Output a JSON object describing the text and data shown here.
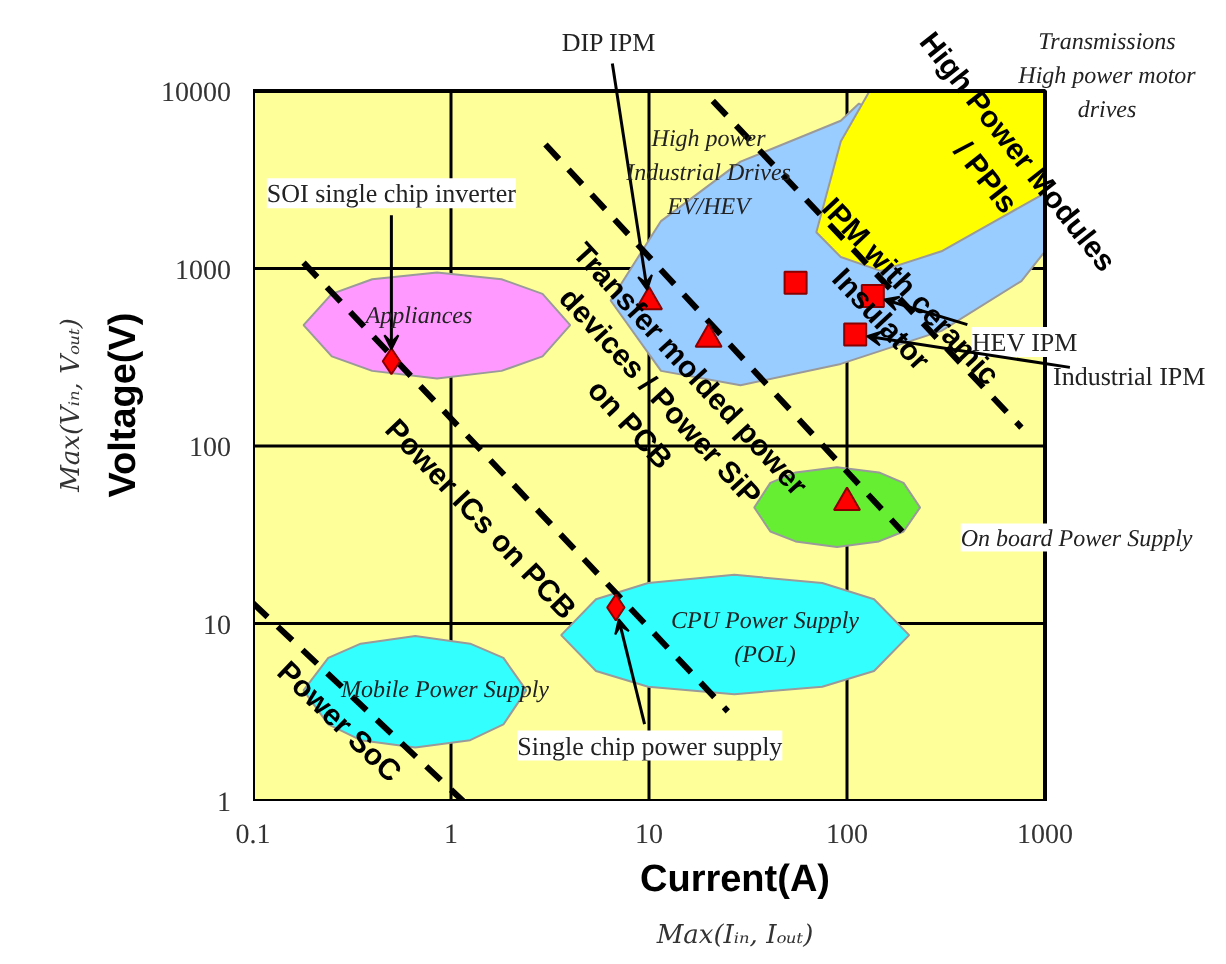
{
  "chart_data": {
    "type": "scatter",
    "xlabel": "Current(A)",
    "ylabel": "Voltage(V)",
    "log": "xy",
    "grid": true,
    "xlim": [
      0.1,
      1000
    ],
    "ylim": [
      1,
      10000
    ],
    "xticks": [
      0.1,
      1,
      10,
      100,
      1000
    ],
    "yticks": [
      1,
      10,
      100,
      1000,
      10000
    ],
    "series": [
      {
        "type": "area",
        "color": "#99ccff",
        "x": [
          6.4,
          11.5,
          29,
          93,
          115,
          1000,
          1000,
          760,
          300,
          93,
          29,
          11.5
        ],
        "values": [
          660,
          1850,
          4000,
          6800,
          8500,
          2600,
          1250,
          850,
          445,
          290,
          220,
          265
        ]
      },
      {
        "type": "area",
        "color": "#ffff00",
        "x": [
          70,
          93,
          130,
          1000,
          1000,
          560,
          300,
          148,
          93
        ],
        "values": [
          1600,
          5200,
          10000,
          10000,
          2660,
          1850,
          1250,
          970,
          1160
        ]
      },
      {
        "type": "area",
        "color": "#ff99ff",
        "x": [
          0.18,
          0.25,
          0.4,
          0.85,
          1.8,
          2.9,
          4.0,
          2.9,
          1.8,
          0.85,
          0.4,
          0.25
        ],
        "values": [
          480,
          720,
          870,
          950,
          870,
          720,
          480,
          320,
          265,
          240,
          265,
          320
        ]
      },
      {
        "type": "area",
        "color": "#33ffff",
        "x": [
          0.18,
          0.24,
          0.35,
          0.66,
          1.25,
          1.84,
          2.4,
          1.84,
          1.25,
          0.66,
          0.35,
          0.24
        ],
        "values": [
          4.2,
          6.4,
          7.7,
          8.5,
          7.7,
          6.4,
          4.2,
          2.7,
          2.2,
          2.0,
          2.2,
          2.7
        ]
      },
      {
        "type": "area",
        "color": "#33ffff",
        "x": [
          3.6,
          5.4,
          9.9,
          27,
          75,
          137,
          206,
          137,
          75,
          27,
          9.9,
          5.4
        ],
        "values": [
          8.6,
          13.7,
          16.9,
          18.8,
          16.9,
          13.7,
          8.6,
          5.4,
          4.4,
          4.0,
          4.4,
          5.4
        ]
      },
      {
        "type": "area",
        "color": "#66ee33",
        "x": [
          34,
          41,
          55,
          89,
          145,
          193,
          234,
          193,
          145,
          89,
          55,
          41
        ],
        "values": [
          45,
          62,
          71,
          76,
          71,
          62,
          45,
          33,
          29,
          27,
          29,
          33
        ]
      },
      {
        "type": "line",
        "color": "#000000",
        "line_style": "dashed",
        "x": [
          0.1,
          1.15
        ],
        "values": [
          13,
          1
        ]
      },
      {
        "type": "line",
        "color": "#000000",
        "line_style": "dashed",
        "x": [
          0.18,
          25
        ],
        "values": [
          1080,
          3.2
        ]
      },
      {
        "type": "line",
        "color": "#000000",
        "line_style": "dashed",
        "x": [
          3.0,
          190
        ],
        "values": [
          5000,
          33
        ]
      },
      {
        "type": "line",
        "color": "#000000",
        "line_style": "dashed",
        "x": [
          21,
          760
        ],
        "values": [
          8800,
          127
        ]
      },
      {
        "marker": "diamond",
        "color": "#ff0000",
        "x": [
          0.5,
          6.8
        ],
        "values": [
          300,
          12.3
        ]
      },
      {
        "marker": "triangle",
        "color": "#ff0000",
        "x": [
          10,
          20,
          100
        ],
        "values": [
          650,
          400,
          48
        ]
      },
      {
        "marker": "square",
        "color": "#ff0000",
        "x": [
          55,
          135,
          110
        ],
        "values": [
          830,
          700,
          425
        ]
      }
    ],
    "annotations": [
      {
        "text": "SOI single chip inverter",
        "x": 0.5,
        "y": 300
      },
      {
        "text": "DIP IPM",
        "x": 10,
        "y": 650
      },
      {
        "text": "HEV IPM",
        "x": 135,
        "y": 700
      },
      {
        "text": "Industrial IPM",
        "x": 110,
        "y": 425
      },
      {
        "text": "Single chip power supply",
        "x": 6.8,
        "y": 12.3
      },
      {
        "text": "High power\nIndustrial Drives\nEV/HEV",
        "x": 20,
        "y": 3500
      },
      "Transmissions\nHigh power motor\ndrives",
      "Appliances",
      "Mobile Power Supply",
      "CPU Power Supply\n(POL)",
      {
        "text": "On board Power Supply",
        "x": 230,
        "y": 45
      },
      {
        "text": "Power SoC",
        "x": 0.34,
        "y": 3.6
      },
      {
        "text": "Power ICs on PCB",
        "x": 2.1,
        "y": 59
      },
      {
        "text": "Transfer molded power\ndevices / Power SiP\non PCB",
        "x": 24,
        "y": 406
      },
      {
        "text": "IPM with ceramic\nInsulator",
        "x": 126,
        "y": 1057
      },
      "High Power Modules\n/ PPIs",
      "Max(Iᵢₙ, Iₒᵤₜ)",
      "Max(Vᵢₙ, Vₒᵤₜ)"
    ]
  }
}
